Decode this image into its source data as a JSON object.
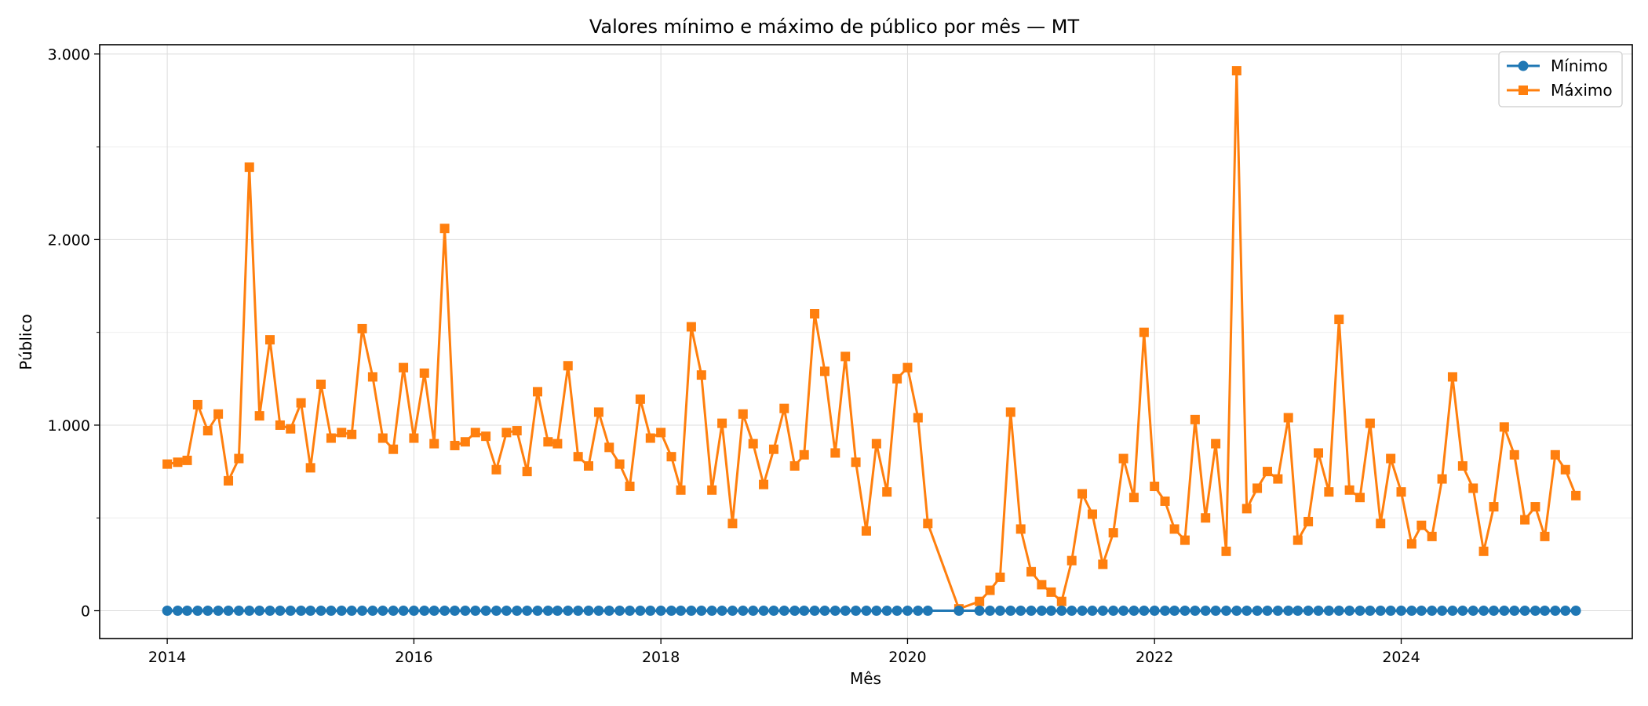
{
  "chart_data": {
    "type": "line",
    "title": "Valores mínimo e máximo de público por mês — MT",
    "xlabel": "Mês",
    "ylabel": "Público",
    "xlim": [
      "2013-06-15",
      "2025-11-15"
    ],
    "ylim": [
      -150,
      3050
    ],
    "x_tick_labels": [
      "2014",
      "2016",
      "2018",
      "2020",
      "2022",
      "2024"
    ],
    "y_tick_labels": [
      "0",
      "1.000",
      "2.000",
      "3.000"
    ],
    "y_tick_values": [
      0,
      1000,
      2000,
      3000
    ],
    "grid": true,
    "legend_position": "top-right",
    "x": [
      "2014-01",
      "2014-02",
      "2014-03",
      "2014-04",
      "2014-05",
      "2014-06",
      "2014-07",
      "2014-08",
      "2014-09",
      "2014-10",
      "2014-11",
      "2014-12",
      "2015-01",
      "2015-02",
      "2015-03",
      "2015-04",
      "2015-05",
      "2015-06",
      "2015-07",
      "2015-08",
      "2015-09",
      "2015-10",
      "2015-11",
      "2015-12",
      "2016-01",
      "2016-02",
      "2016-03",
      "2016-04",
      "2016-05",
      "2016-06",
      "2016-07",
      "2016-08",
      "2016-09",
      "2016-10",
      "2016-11",
      "2016-12",
      "2017-01",
      "2017-02",
      "2017-03",
      "2017-04",
      "2017-05",
      "2017-06",
      "2017-07",
      "2017-08",
      "2017-09",
      "2017-10",
      "2017-11",
      "2017-12",
      "2018-01",
      "2018-02",
      "2018-03",
      "2018-04",
      "2018-05",
      "2018-06",
      "2018-07",
      "2018-08",
      "2018-09",
      "2018-10",
      "2018-11",
      "2018-12",
      "2019-01",
      "2019-02",
      "2019-03",
      "2019-04",
      "2019-05",
      "2019-06",
      "2019-07",
      "2019-08",
      "2019-09",
      "2019-10",
      "2019-11",
      "2019-12",
      "2020-01",
      "2020-02",
      "2020-03",
      "2020-06",
      "2020-08",
      "2020-09",
      "2020-10",
      "2020-11",
      "2020-12",
      "2021-01",
      "2021-02",
      "2021-03",
      "2021-04",
      "2021-05",
      "2021-06",
      "2021-07",
      "2021-08",
      "2021-09",
      "2021-10",
      "2021-11",
      "2021-12",
      "2022-01",
      "2022-02",
      "2022-03",
      "2022-04",
      "2022-05",
      "2022-06",
      "2022-07",
      "2022-08",
      "2022-09",
      "2022-10",
      "2022-11",
      "2022-12",
      "2023-01",
      "2023-02",
      "2023-03",
      "2023-04",
      "2023-05",
      "2023-06",
      "2023-07",
      "2023-08",
      "2023-09",
      "2023-10",
      "2023-11",
      "2023-12",
      "2024-01",
      "2024-02",
      "2024-03",
      "2024-04",
      "2024-05",
      "2024-06",
      "2024-07",
      "2024-08",
      "2024-09",
      "2024-10",
      "2024-11",
      "2024-12",
      "2025-01",
      "2025-02",
      "2025-03",
      "2025-04",
      "2025-05",
      "2025-06"
    ],
    "series": [
      {
        "name": "Mínimo",
        "color": "#1f77b4",
        "marker": "circle",
        "values": [
          0,
          0,
          0,
          0,
          0,
          0,
          0,
          0,
          0,
          0,
          0,
          0,
          0,
          0,
          0,
          0,
          0,
          0,
          0,
          0,
          0,
          0,
          0,
          0,
          0,
          0,
          0,
          0,
          0,
          0,
          0,
          0,
          0,
          0,
          0,
          0,
          0,
          0,
          0,
          0,
          0,
          0,
          0,
          0,
          0,
          0,
          0,
          0,
          0,
          0,
          0,
          0,
          0,
          0,
          0,
          0,
          0,
          0,
          0,
          0,
          0,
          0,
          0,
          0,
          0,
          0,
          0,
          0,
          0,
          0,
          0,
          0,
          0,
          0,
          0,
          0,
          0,
          0,
          0,
          0,
          0,
          0,
          0,
          0,
          0,
          0,
          0,
          0,
          0,
          0,
          0,
          0,
          0,
          0,
          0,
          0,
          0,
          0,
          0,
          0,
          0,
          0,
          0,
          0,
          0,
          0,
          0,
          0,
          0,
          0,
          0,
          0,
          0,
          0,
          0,
          0,
          0,
          0,
          0,
          0,
          0,
          0,
          0,
          0,
          0,
          0,
          0,
          0,
          0,
          0,
          0,
          0,
          0,
          0,
          0
        ]
      },
      {
        "name": "Máximo",
        "color": "#ff7f0e",
        "marker": "square",
        "values": [
          790,
          800,
          810,
          1110,
          970,
          1060,
          700,
          820,
          2390,
          1050,
          1460,
          1000,
          980,
          1120,
          770,
          1220,
          930,
          960,
          950,
          1520,
          1260,
          930,
          870,
          1310,
          930,
          1280,
          900,
          2060,
          890,
          910,
          960,
          940,
          760,
          960,
          970,
          750,
          1180,
          910,
          900,
          1320,
          830,
          780,
          1070,
          880,
          790,
          670,
          1140,
          930,
          960,
          830,
          650,
          1530,
          1270,
          650,
          1010,
          470,
          1060,
          900,
          680,
          870,
          1090,
          780,
          840,
          1600,
          1290,
          850,
          1370,
          800,
          430,
          900,
          640,
          1250,
          1310,
          1040,
          470,
          10,
          50,
          110,
          180,
          1070,
          440,
          210,
          140,
          100,
          50,
          270,
          630,
          520,
          250,
          420,
          820,
          610,
          1500,
          670,
          590,
          440,
          380,
          1030,
          500,
          900,
          320,
          2910,
          550,
          660,
          750,
          710,
          1040,
          380,
          480,
          850,
          640,
          1570,
          650,
          610,
          1010,
          470,
          820,
          640,
          360,
          460,
          400,
          710,
          1260,
          780,
          660,
          320,
          560,
          990,
          840,
          490,
          560,
          400,
          840,
          760,
          620
        ]
      }
    ]
  }
}
